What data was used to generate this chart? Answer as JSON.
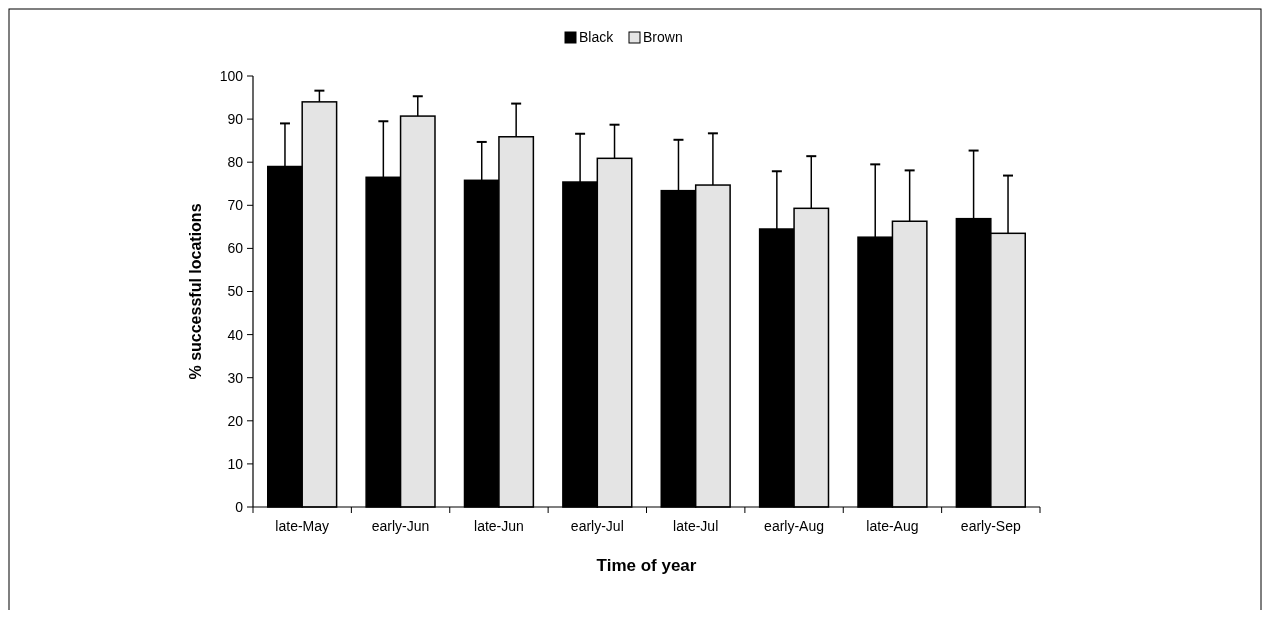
{
  "chart_data": {
    "type": "bar",
    "xlabel": "Time of year",
    "ylabel": "% successful locations",
    "categories": [
      "late-May",
      "early-Jun",
      "late-Jun",
      "early-Jul",
      "late-Jul",
      "early-Aug",
      "late-Aug",
      "early-Sep"
    ],
    "series": [
      {
        "name": "Black",
        "color": "#000000",
        "values": [
          79,
          76.5,
          75.8,
          75.4,
          73.4,
          64.5,
          62.6,
          66.9
        ],
        "errors": [
          [
            79,
            89
          ],
          [
            76.5,
            89.5
          ],
          [
            75.8,
            84.7
          ],
          [
            75.4,
            86.6
          ],
          [
            73.4,
            85.2
          ],
          [
            64.5,
            77.9
          ],
          [
            62.6,
            79.5
          ],
          [
            66.9,
            82.7
          ]
        ]
      },
      {
        "name": "Brown",
        "color": "#e4e4e4",
        "values": [
          94,
          90.7,
          85.9,
          80.9,
          74.7,
          69.3,
          66.3,
          63.5
        ],
        "errors": [
          [
            94,
            96.6
          ],
          [
            90.7,
            95.3
          ],
          [
            85.9,
            93.6
          ],
          [
            80.9,
            88.7
          ],
          [
            74.7,
            86.7
          ],
          [
            69.3,
            81.4
          ],
          [
            66.3,
            78.1
          ],
          [
            63.5,
            76.9
          ]
        ]
      }
    ],
    "ylim": [
      0,
      100
    ],
    "yticks": [
      0,
      10,
      20,
      30,
      40,
      50,
      60,
      70,
      80,
      90,
      100
    ],
    "grid": false,
    "legend": "top"
  }
}
